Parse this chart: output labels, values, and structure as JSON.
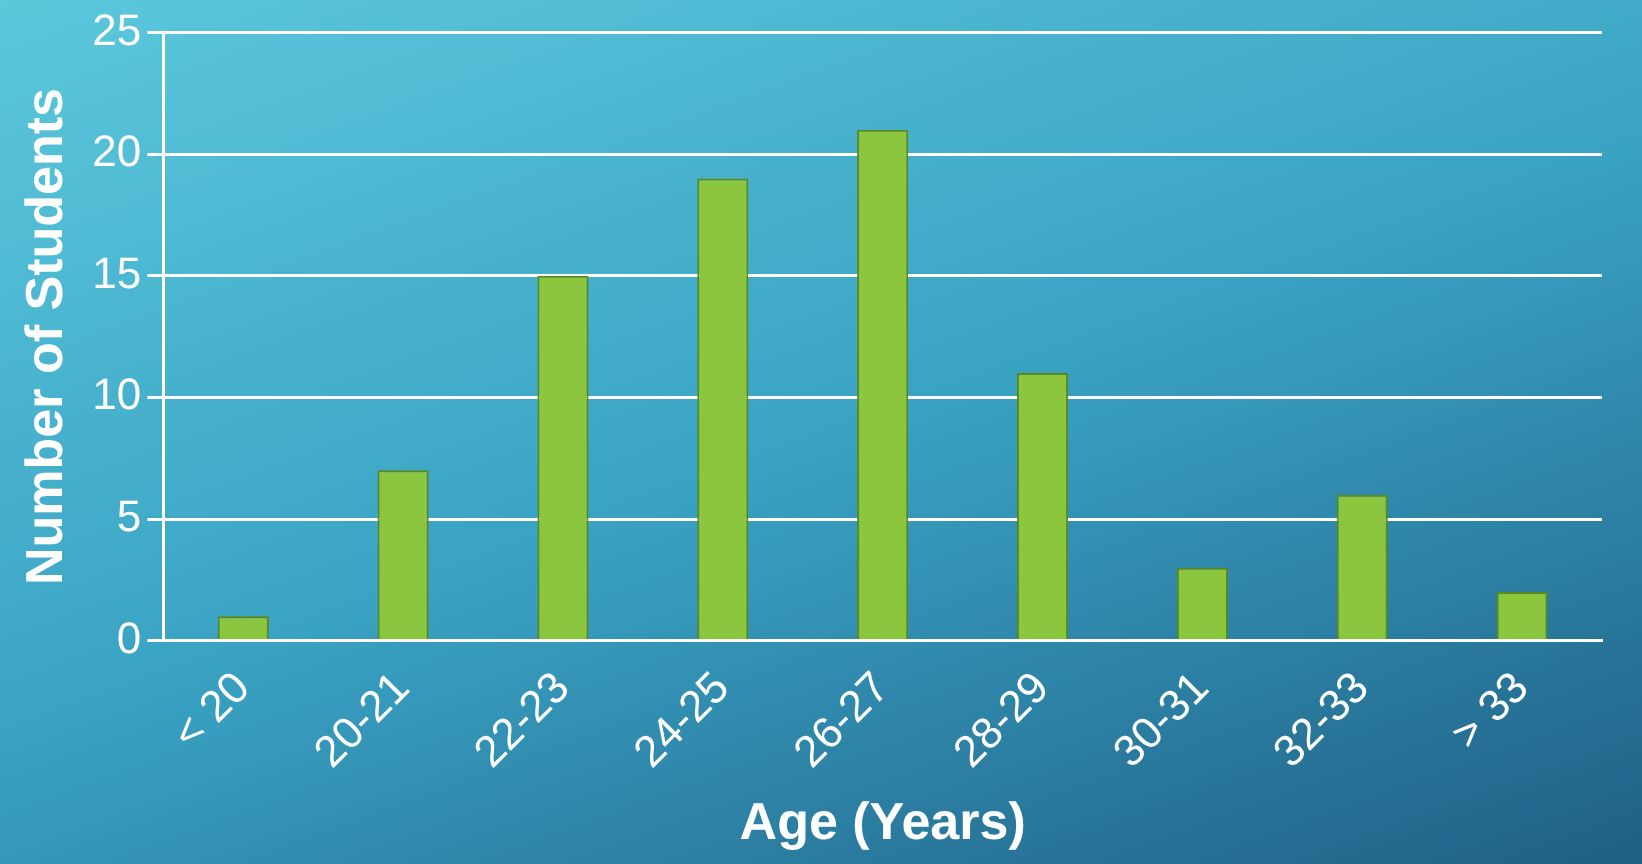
{
  "chart_data": {
    "type": "bar",
    "xlabel": "Age (Years)",
    "ylabel": "Number of Students",
    "categories": [
      "< 20",
      "20-21",
      "22-23",
      "24-25",
      "26-27",
      "28-29",
      "30-31",
      "32-33",
      "> 33"
    ],
    "values": [
      1,
      7,
      15,
      19,
      21,
      11,
      3,
      6,
      2
    ],
    "color": "#8cc63f",
    "ylim": [
      0,
      25
    ],
    "yticks": [
      0,
      5,
      10,
      15,
      20,
      25
    ],
    "grid": "y",
    "legend": false
  }
}
